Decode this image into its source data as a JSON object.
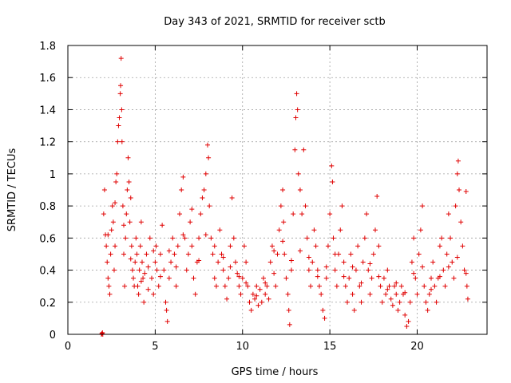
{
  "chart_data": {
    "type": "scatter",
    "title": "Day 343 of 2021, SRMTID for receiver sctb",
    "xlabel": "GPS time / hours",
    "ylabel": "SRMTID / TECUs",
    "xlim": [
      0,
      24
    ],
    "ylim": [
      0,
      1.8
    ],
    "xticks": [
      0,
      5,
      10,
      15,
      20
    ],
    "xtick_labels": [
      "0",
      "5",
      "10",
      "15",
      "20"
    ],
    "yticks": [
      0,
      0.2,
      0.4,
      0.6,
      0.8,
      1,
      1.2,
      1.4,
      1.6,
      1.8
    ],
    "ytick_labels": [
      "0",
      "0.2",
      "0.4",
      "0.6",
      "0.8",
      "1",
      "1.2",
      "1.4",
      "1.6",
      "1.8"
    ],
    "grid": true,
    "marker": "+",
    "series": [
      {
        "name": "SRMTID",
        "color": "#e00000",
        "points": [
          [
            1.92,
            0.0
          ],
          [
            1.95,
            0.005
          ],
          [
            1.98,
            0.01
          ],
          [
            2.0,
            0.0
          ],
          [
            2.05,
            0.75
          ],
          [
            2.1,
            0.9
          ],
          [
            2.15,
            0.62
          ],
          [
            2.2,
            0.55
          ],
          [
            2.25,
            0.45
          ],
          [
            2.3,
            0.35
          ],
          [
            2.35,
            0.3
          ],
          [
            2.4,
            0.25
          ],
          [
            2.45,
            0.5
          ],
          [
            2.5,
            0.65
          ],
          [
            2.55,
            0.8
          ],
          [
            2.6,
            0.7
          ],
          [
            2.65,
            0.4
          ],
          [
            2.7,
            0.55
          ],
          [
            2.75,
            0.95
          ],
          [
            2.8,
            1.0
          ],
          [
            2.85,
            1.2
          ],
          [
            2.9,
            1.3
          ],
          [
            2.95,
            1.35
          ],
          [
            3.0,
            1.5
          ],
          [
            3.02,
            1.55
          ],
          [
            3.05,
            1.72
          ],
          [
            3.08,
            1.4
          ],
          [
            3.1,
            1.2
          ],
          [
            3.15,
            0.8
          ],
          [
            3.2,
            0.5
          ],
          [
            3.25,
            0.3
          ],
          [
            3.3,
            0.6
          ],
          [
            3.35,
            0.75
          ],
          [
            3.4,
            0.9
          ],
          [
            3.45,
            1.1
          ],
          [
            3.5,
            0.95
          ],
          [
            3.55,
            0.7
          ],
          [
            3.6,
            0.85
          ],
          [
            3.65,
            0.55
          ],
          [
            3.7,
            0.4
          ],
          [
            3.75,
            0.35
          ],
          [
            3.8,
            0.3
          ],
          [
            3.85,
            0.45
          ],
          [
            3.9,
            0.6
          ],
          [
            3.95,
            0.5
          ],
          [
            4.0,
            0.3
          ],
          [
            4.05,
            0.25
          ],
          [
            4.1,
            0.4
          ],
          [
            4.15,
            0.55
          ],
          [
            4.2,
            0.7
          ],
          [
            4.25,
            0.45
          ],
          [
            4.3,
            0.35
          ],
          [
            4.35,
            0.2
          ],
          [
            4.4,
            0.38
          ],
          [
            4.5,
            0.5
          ],
          [
            4.6,
            0.42
          ],
          [
            4.7,
            0.6
          ],
          [
            4.8,
            0.35
          ],
          [
            4.9,
            0.25
          ],
          [
            5.0,
            0.45
          ],
          [
            5.05,
            0.55
          ],
          [
            5.1,
            0.4
          ],
          [
            5.2,
            0.3
          ],
          [
            5.3,
            0.5
          ],
          [
            5.4,
            0.68
          ],
          [
            5.5,
            0.4
          ],
          [
            5.6,
            0.2
          ],
          [
            5.65,
            0.15
          ],
          [
            5.7,
            0.08
          ],
          [
            5.8,
            0.35
          ],
          [
            5.9,
            0.45
          ],
          [
            6.0,
            0.6
          ],
          [
            6.1,
            0.5
          ],
          [
            6.2,
            0.3
          ],
          [
            6.3,
            0.55
          ],
          [
            6.4,
            0.75
          ],
          [
            6.5,
            0.9
          ],
          [
            6.6,
            0.98
          ],
          [
            6.7,
            0.6
          ],
          [
            6.8,
            0.4
          ],
          [
            6.9,
            0.5
          ],
          [
            7.0,
            0.7
          ],
          [
            7.1,
            0.55
          ],
          [
            7.2,
            0.35
          ],
          [
            7.3,
            0.25
          ],
          [
            7.4,
            0.45
          ],
          [
            7.5,
            0.6
          ],
          [
            7.6,
            0.75
          ],
          [
            7.7,
            0.85
          ],
          [
            7.8,
            0.9
          ],
          [
            7.9,
            1.0
          ],
          [
            8.0,
            1.18
          ],
          [
            8.05,
            1.1
          ],
          [
            8.1,
            0.8
          ],
          [
            8.2,
            0.6
          ],
          [
            8.3,
            0.5
          ],
          [
            8.4,
            0.35
          ],
          [
            8.5,
            0.3
          ],
          [
            8.6,
            0.45
          ],
          [
            8.7,
            0.65
          ],
          [
            8.8,
            0.5
          ],
          [
            8.9,
            0.4
          ],
          [
            9.0,
            0.3
          ],
          [
            9.1,
            0.22
          ],
          [
            9.2,
            0.35
          ],
          [
            9.3,
            0.55
          ],
          [
            9.4,
            0.85
          ],
          [
            9.5,
            0.6
          ],
          [
            9.6,
            0.45
          ],
          [
            9.7,
            0.38
          ],
          [
            9.8,
            0.3
          ],
          [
            9.9,
            0.25
          ],
          [
            10.0,
            0.35
          ],
          [
            10.1,
            0.55
          ],
          [
            10.2,
            0.45
          ],
          [
            10.3,
            0.3
          ],
          [
            10.4,
            0.2
          ],
          [
            10.5,
            0.15
          ],
          [
            10.6,
            0.25
          ],
          [
            10.7,
            0.22
          ],
          [
            10.8,
            0.3
          ],
          [
            10.9,
            0.18
          ],
          [
            11.0,
            0.28
          ],
          [
            11.1,
            0.2
          ],
          [
            11.2,
            0.35
          ],
          [
            11.3,
            0.25
          ],
          [
            11.4,
            0.3
          ],
          [
            11.5,
            0.22
          ],
          [
            11.6,
            0.45
          ],
          [
            11.7,
            0.55
          ],
          [
            11.8,
            0.38
          ],
          [
            11.9,
            0.3
          ],
          [
            12.0,
            0.5
          ],
          [
            12.1,
            0.65
          ],
          [
            12.2,
            0.8
          ],
          [
            12.3,
            0.9
          ],
          [
            12.35,
            0.7
          ],
          [
            12.4,
            0.5
          ],
          [
            12.5,
            0.35
          ],
          [
            12.6,
            0.25
          ],
          [
            12.65,
            0.15
          ],
          [
            12.7,
            0.06
          ],
          [
            12.8,
            0.4
          ],
          [
            12.9,
            0.75
          ],
          [
            13.0,
            1.15
          ],
          [
            13.05,
            1.35
          ],
          [
            13.1,
            1.5
          ],
          [
            13.15,
            1.4
          ],
          [
            13.2,
            1.0
          ],
          [
            13.3,
            0.9
          ],
          [
            13.4,
            0.75
          ],
          [
            13.5,
            1.15
          ],
          [
            13.6,
            0.8
          ],
          [
            13.7,
            0.6
          ],
          [
            13.8,
            0.4
          ],
          [
            13.9,
            0.3
          ],
          [
            14.0,
            0.45
          ],
          [
            14.1,
            0.65
          ],
          [
            14.2,
            0.55
          ],
          [
            14.3,
            0.4
          ],
          [
            14.4,
            0.3
          ],
          [
            14.5,
            0.25
          ],
          [
            14.6,
            0.15
          ],
          [
            14.7,
            0.1
          ],
          [
            14.8,
            0.35
          ],
          [
            14.9,
            0.55
          ],
          [
            15.0,
            0.75
          ],
          [
            15.1,
            1.05
          ],
          [
            15.15,
            0.95
          ],
          [
            15.2,
            0.6
          ],
          [
            15.3,
            0.4
          ],
          [
            15.4,
            0.3
          ],
          [
            15.5,
            0.5
          ],
          [
            15.6,
            0.65
          ],
          [
            15.7,
            0.8
          ],
          [
            15.8,
            0.45
          ],
          [
            15.9,
            0.3
          ],
          [
            16.0,
            0.2
          ],
          [
            16.1,
            0.35
          ],
          [
            16.2,
            0.5
          ],
          [
            16.3,
            0.25
          ],
          [
            16.4,
            0.15
          ],
          [
            16.5,
            0.4
          ],
          [
            16.6,
            0.55
          ],
          [
            16.7,
            0.3
          ],
          [
            16.8,
            0.2
          ],
          [
            16.9,
            0.45
          ],
          [
            17.0,
            0.6
          ],
          [
            17.1,
            0.75
          ],
          [
            17.2,
            0.4
          ],
          [
            17.3,
            0.25
          ],
          [
            17.4,
            0.35
          ],
          [
            17.5,
            0.5
          ],
          [
            17.6,
            0.65
          ],
          [
            17.7,
            0.86
          ],
          [
            17.8,
            0.55
          ],
          [
            17.9,
            0.3
          ],
          [
            18.0,
            0.2
          ],
          [
            18.1,
            0.35
          ],
          [
            18.2,
            0.25
          ],
          [
            18.3,
            0.4
          ],
          [
            18.4,
            0.3
          ],
          [
            18.5,
            0.22
          ],
          [
            18.6,
            0.18
          ],
          [
            18.7,
            0.3
          ],
          [
            18.8,
            0.25
          ],
          [
            18.9,
            0.15
          ],
          [
            19.0,
            0.2
          ],
          [
            19.1,
            0.3
          ],
          [
            19.2,
            0.25
          ],
          [
            19.3,
            0.12
          ],
          [
            19.4,
            0.05
          ],
          [
            19.5,
            0.08
          ],
          [
            19.6,
            0.2
          ],
          [
            19.7,
            0.45
          ],
          [
            19.8,
            0.6
          ],
          [
            19.9,
            0.35
          ],
          [
            20.0,
            0.25
          ],
          [
            20.1,
            0.5
          ],
          [
            20.2,
            0.65
          ],
          [
            20.3,
            0.8
          ],
          [
            20.4,
            0.3
          ],
          [
            20.5,
            0.2
          ],
          [
            20.6,
            0.15
          ],
          [
            20.7,
            0.25
          ],
          [
            20.8,
            0.35
          ],
          [
            20.9,
            0.45
          ],
          [
            21.0,
            0.3
          ],
          [
            21.1,
            0.2
          ],
          [
            21.2,
            0.35
          ],
          [
            21.3,
            0.55
          ],
          [
            21.4,
            0.6
          ],
          [
            21.5,
            0.4
          ],
          [
            21.6,
            0.3
          ],
          [
            21.7,
            0.5
          ],
          [
            21.8,
            0.75
          ],
          [
            21.9,
            0.6
          ],
          [
            22.0,
            0.45
          ],
          [
            22.1,
            0.35
          ],
          [
            22.2,
            0.8
          ],
          [
            22.3,
            1.0
          ],
          [
            22.35,
            1.08
          ],
          [
            22.4,
            0.9
          ],
          [
            22.5,
            0.7
          ],
          [
            22.6,
            0.55
          ],
          [
            22.7,
            0.4
          ],
          [
            22.8,
            0.89
          ],
          [
            22.85,
            0.3
          ],
          [
            22.9,
            0.22
          ],
          [
            2.3,
            0.62
          ],
          [
            2.7,
            0.82
          ],
          [
            3.2,
            0.68
          ],
          [
            3.6,
            0.47
          ],
          [
            4.2,
            0.33
          ],
          [
            4.6,
            0.28
          ],
          [
            4.9,
            0.52
          ],
          [
            5.3,
            0.36
          ],
          [
            5.8,
            0.52
          ],
          [
            6.2,
            0.42
          ],
          [
            6.6,
            0.62
          ],
          [
            7.1,
            0.78
          ],
          [
            7.5,
            0.46
          ],
          [
            7.9,
            0.62
          ],
          [
            8.4,
            0.55
          ],
          [
            8.9,
            0.48
          ],
          [
            9.3,
            0.42
          ],
          [
            9.8,
            0.36
          ],
          [
            10.2,
            0.32
          ],
          [
            10.8,
            0.24
          ],
          [
            11.3,
            0.32
          ],
          [
            11.8,
            0.52
          ],
          [
            12.3,
            0.58
          ],
          [
            12.8,
            0.46
          ],
          [
            13.3,
            0.52
          ],
          [
            13.8,
            0.48
          ],
          [
            14.3,
            0.36
          ],
          [
            14.8,
            0.42
          ],
          [
            15.3,
            0.5
          ],
          [
            15.8,
            0.36
          ],
          [
            16.3,
            0.42
          ],
          [
            16.8,
            0.32
          ],
          [
            17.3,
            0.44
          ],
          [
            17.8,
            0.36
          ],
          [
            18.3,
            0.28
          ],
          [
            18.8,
            0.32
          ],
          [
            19.3,
            0.26
          ],
          [
            19.8,
            0.38
          ],
          [
            20.3,
            0.42
          ],
          [
            20.8,
            0.28
          ],
          [
            21.3,
            0.36
          ],
          [
            21.8,
            0.42
          ],
          [
            22.3,
            0.48
          ],
          [
            22.8,
            0.38
          ]
        ]
      }
    ]
  }
}
